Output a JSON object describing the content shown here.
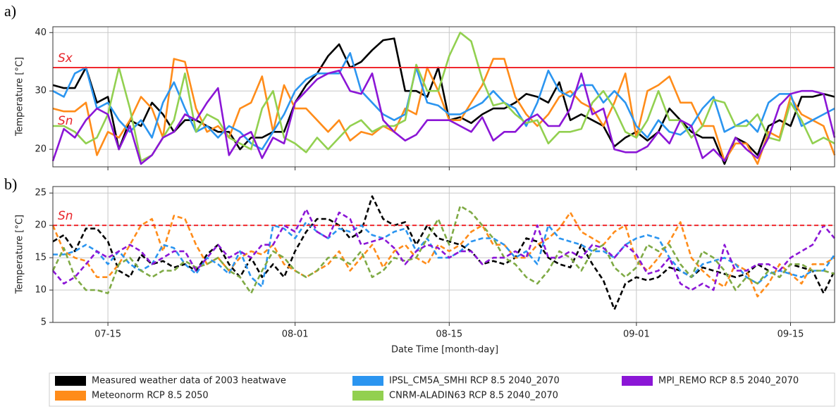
{
  "chart_data": [
    {
      "type": "line",
      "panel_label": "a)",
      "ylabel": "Temperature [°C]",
      "categories": [
        null,
        null,
        null,
        null,
        null,
        null,
        null,
        null,
        null,
        null,
        null,
        null,
        null,
        null,
        null,
        null,
        null,
        null,
        null,
        null,
        null,
        null,
        null,
        null,
        null,
        null,
        null,
        null,
        null,
        null,
        null,
        null,
        null,
        null,
        null,
        null,
        null,
        null,
        null,
        null,
        null,
        null,
        null,
        null,
        null,
        null,
        null,
        null,
        null,
        null,
        null,
        null,
        null,
        null,
        null,
        null,
        null,
        null,
        null,
        null,
        null,
        null,
        null,
        null,
        null,
        null,
        null,
        null,
        null,
        null,
        null,
        null
      ],
      "ylim": [
        17,
        41
      ],
      "yticks": [
        20,
        30,
        40
      ],
      "grid": true,
      "hlines": [
        {
          "value": 34,
          "label": "Sx",
          "color": "#f0282d",
          "dashed": false
        }
      ],
      "annotations": [
        "Sn"
      ],
      "series": [
        {
          "name": "Measured weather data of 2003 heatwave",
          "color": "#000000",
          "values": [
            31,
            30.5,
            30.5,
            34,
            28,
            29,
            20,
            25,
            24,
            28,
            26,
            23,
            25,
            25,
            24,
            23,
            23,
            20,
            22,
            22,
            23,
            23,
            28,
            31,
            33,
            36,
            38,
            34,
            35,
            37,
            38.7,
            39,
            30,
            30,
            29,
            34,
            25,
            25.5,
            24.5,
            26,
            27,
            27,
            28,
            29.5,
            29,
            28,
            31.5,
            25,
            26,
            25,
            24,
            20.5,
            22,
            23,
            21.5,
            23,
            27,
            25,
            23,
            22,
            22,
            17.5,
            22,
            21,
            19,
            24,
            25,
            24,
            29,
            29,
            29.5,
            29
          ]
        },
        {
          "name": "Meteonorm RCP 8.5 2050",
          "color": "#ff8c1a",
          "values": [
            27,
            26.5,
            26.5,
            28,
            19,
            23,
            22,
            25,
            29,
            27,
            22,
            35.5,
            35,
            27,
            23,
            24,
            22,
            27,
            28,
            32.5,
            23,
            31,
            27,
            27,
            25,
            23,
            25,
            21.5,
            23,
            22.5,
            24,
            23,
            27,
            26,
            34,
            30,
            25,
            25,
            28,
            31,
            35.5,
            35.5,
            29,
            26,
            24,
            26,
            29,
            30,
            28,
            27,
            24,
            28,
            33,
            22,
            30,
            31,
            32.5,
            28,
            28,
            24,
            24,
            18,
            21,
            21,
            17.5,
            23,
            22,
            29,
            26,
            25,
            24,
            19
          ]
        },
        {
          "name": "IPSL_CM5A_SMHI RCP 8.5 2040_2070",
          "color": "#2b95f0",
          "values": [
            30,
            29,
            33,
            34,
            27,
            28,
            25,
            23,
            25,
            22,
            28,
            31.5,
            27,
            23,
            24,
            22,
            24,
            23,
            21,
            20,
            23,
            26,
            30,
            32,
            33,
            33,
            33,
            36.5,
            30,
            28,
            26,
            25,
            26,
            34,
            28,
            27.5,
            26,
            26,
            27,
            28,
            30,
            28,
            27,
            24,
            28,
            33.5,
            30,
            29,
            31,
            31,
            28,
            30,
            28,
            24,
            22,
            25,
            23,
            22.5,
            24,
            27,
            29,
            23,
            24,
            25,
            23,
            28,
            29.5,
            29.5,
            24,
            25,
            26,
            27
          ]
        },
        {
          "name": "CNRM-ALADIN63 RCP 8.5 2040_2070",
          "color": "#92d050",
          "values": [
            24,
            24,
            23,
            21,
            22,
            26,
            34,
            27,
            18,
            19,
            22,
            25,
            33,
            23,
            26,
            25,
            22,
            21,
            20,
            27,
            30,
            22,
            21,
            19.5,
            22,
            20,
            22,
            24,
            25,
            23,
            24,
            24,
            25,
            34.5,
            30,
            30,
            36,
            40,
            38.5,
            32,
            27.5,
            28,
            26,
            24.5,
            25,
            21,
            23,
            23,
            23.5,
            28,
            30,
            27,
            23,
            22,
            25,
            30,
            25,
            25,
            22,
            24,
            28.5,
            28,
            24,
            24,
            26,
            22,
            21.5,
            28,
            25,
            21,
            22,
            21
          ]
        },
        {
          "name": "MPI_REMO RCP 8.5 2040_2070",
          "color": "#8b16d6",
          "values": [
            18,
            23.5,
            22,
            25,
            27,
            26,
            20,
            24,
            17.5,
            19,
            22,
            23,
            26,
            25,
            28,
            30.5,
            19,
            22,
            23,
            18.5,
            22,
            21,
            28,
            30,
            32,
            33,
            33.5,
            30,
            29.5,
            33,
            25,
            23,
            21.5,
            22.5,
            25,
            25,
            25,
            24,
            23,
            25.5,
            21.5,
            23,
            23,
            25,
            26,
            24,
            24,
            27,
            33,
            26,
            27,
            20,
            19.5,
            19.5,
            20.5,
            23,
            21,
            25,
            24,
            18.5,
            20,
            18,
            22,
            20,
            18.5,
            22,
            27.5,
            29.5,
            30,
            30,
            29.5,
            22
          ]
        }
      ]
    },
    {
      "type": "line",
      "panel_label": "b)",
      "ylabel": "Temperature [°C]",
      "xlabel": "Date Time [month-day]",
      "categories": [
        null,
        null,
        null,
        null,
        null,
        "07-15",
        null,
        null,
        null,
        null,
        null,
        null,
        null,
        null,
        null,
        null,
        null,
        null,
        null,
        null,
        null,
        null,
        "08-01",
        null,
        null,
        null,
        null,
        null,
        null,
        null,
        null,
        null,
        null,
        null,
        null,
        null,
        "08-15",
        null,
        null,
        null,
        null,
        null,
        null,
        null,
        null,
        null,
        null,
        null,
        null,
        null,
        null,
        null,
        null,
        "09-01",
        null,
        null,
        null,
        null,
        null,
        null,
        null,
        null,
        null,
        null,
        null,
        null,
        null,
        "09-15",
        null,
        null,
        null,
        null
      ],
      "ylim": [
        5,
        26
      ],
      "yticks": [
        5,
        10,
        15,
        20,
        25
      ],
      "grid": true,
      "hlines": [
        {
          "value": 20,
          "label": "Sn",
          "color": "#f0282d",
          "dashed": true
        }
      ],
      "series": [
        {
          "color": "#000000",
          "dashed": true,
          "values": [
            17.5,
            18.5,
            16,
            19.5,
            19.5,
            17.5,
            13,
            12,
            15.5,
            14,
            14.5,
            13.5,
            14,
            13,
            15.5,
            17,
            14,
            12,
            15,
            12,
            14,
            12,
            16,
            19,
            21,
            21,
            20,
            18,
            19,
            24.5,
            21,
            20,
            20.5,
            17,
            20,
            18,
            17.5,
            17,
            16,
            14,
            14.5,
            14,
            15,
            18,
            17.5,
            15,
            14,
            13.5,
            17,
            14,
            11.5,
            7,
            11,
            12,
            11.5,
            12,
            13.5,
            13,
            12,
            13.5,
            13,
            12.5,
            12,
            12.5,
            14,
            13,
            12,
            14,
            13.5,
            13,
            9.5,
            13
          ]
        },
        {
          "color": "#ff8c1a",
          "dashed": true,
          "values": [
            20,
            16,
            15,
            14.5,
            12,
            12,
            14,
            17,
            20,
            21,
            16,
            21.5,
            21,
            17,
            14,
            15,
            13,
            15,
            16,
            15.5,
            17,
            14,
            13,
            12,
            13,
            14,
            16,
            13,
            15,
            17,
            13.5,
            16,
            17,
            15,
            14,
            17,
            16,
            17,
            19,
            20,
            17,
            17,
            15,
            15,
            17,
            18,
            19.5,
            22,
            19,
            18,
            17,
            19,
            20,
            14.5,
            13,
            15,
            17.5,
            20.5,
            15,
            13,
            11.5,
            10.5,
            14,
            13,
            9,
            11,
            14,
            12.5,
            11,
            14,
            14,
            15
          ]
        },
        {
          "color": "#2b95f0",
          "dashed": true,
          "values": [
            15.5,
            15.5,
            16,
            17,
            16,
            14,
            16,
            14,
            13,
            14,
            17,
            16.5,
            14,
            12.5,
            15,
            14,
            12.5,
            16,
            12,
            10.5,
            20,
            19.5,
            18,
            20.5,
            19,
            18,
            19.5,
            19,
            20,
            18.5,
            18,
            19,
            19.5,
            16,
            18,
            15,
            15,
            16,
            17.5,
            18,
            18,
            17,
            15,
            16,
            14,
            20,
            18,
            17.5,
            17,
            16,
            16,
            15,
            17,
            18,
            18.5,
            18,
            15,
            13,
            12,
            14,
            14.5,
            15,
            14,
            12,
            11,
            12.5,
            13,
            12.5,
            12,
            13,
            13,
            15.5
          ]
        },
        {
          "color": "#7faa45",
          "dashed": true,
          "values": [
            13,
            16.5,
            12,
            10,
            10,
            9.5,
            14,
            15,
            13,
            12,
            13,
            13,
            14.5,
            13.5,
            14,
            15,
            13,
            12,
            9.5,
            13,
            16,
            15,
            13,
            12,
            13,
            15,
            15,
            14,
            16,
            12,
            13,
            15,
            14.5,
            15,
            18,
            21,
            17,
            23,
            22,
            20,
            18,
            15,
            14,
            12,
            11,
            13,
            16,
            15,
            13,
            16,
            17,
            13.5,
            12,
            13.5,
            17,
            16,
            17,
            14,
            12,
            16,
            15,
            13,
            10,
            12,
            11,
            13,
            12,
            14,
            14,
            13,
            13,
            12.5
          ]
        },
        {
          "color": "#8b16d6",
          "dashed": true,
          "values": [
            13,
            11,
            12,
            14,
            16,
            15,
            16,
            17,
            16,
            14,
            15,
            16,
            16,
            13,
            15,
            17,
            15,
            16,
            15,
            17,
            17,
            20,
            19,
            22.5,
            19,
            18,
            22,
            21,
            17,
            17.5,
            18,
            16.5,
            14,
            16,
            17,
            16.5,
            15,
            16,
            16,
            14,
            15,
            15,
            16,
            15,
            20,
            15,
            15,
            16,
            15,
            17,
            16.5,
            15,
            17,
            15.5,
            12.5,
            13,
            15,
            11,
            10,
            11,
            10,
            17,
            13,
            13,
            14,
            14,
            13,
            15,
            16,
            17,
            20,
            18
          ]
        }
      ]
    }
  ]
}
